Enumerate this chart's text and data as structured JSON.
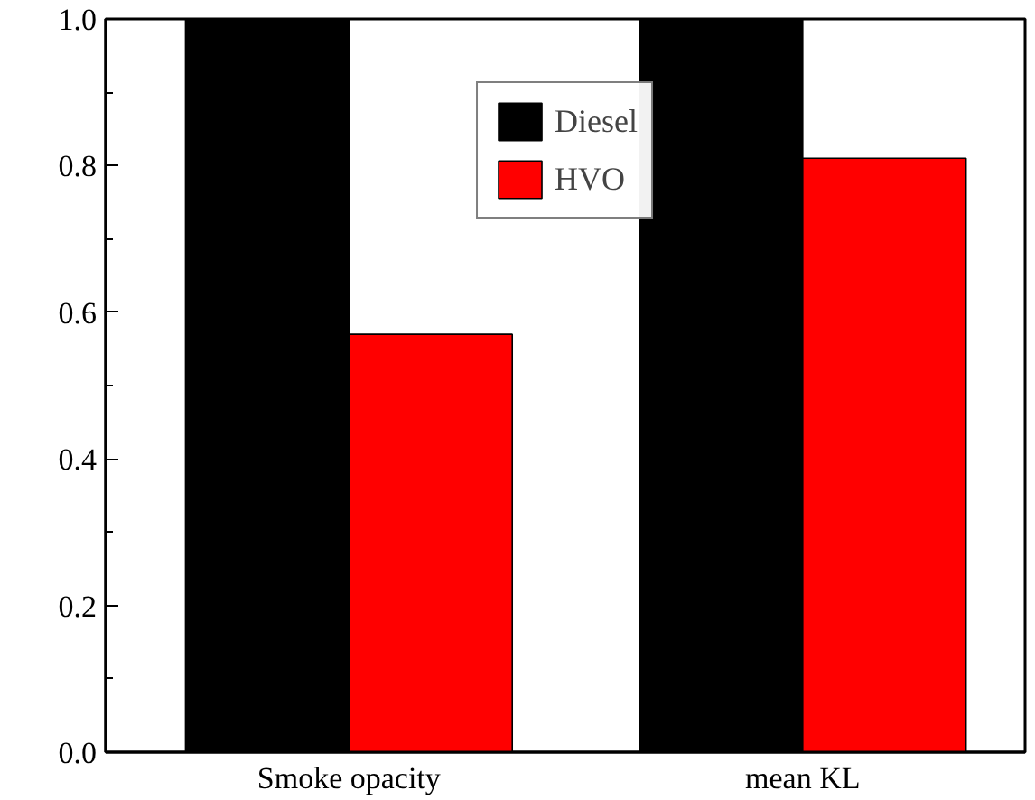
{
  "chart_data": {
    "type": "bar",
    "categories": [
      "Smoke opacity",
      "mean KL"
    ],
    "series": [
      {
        "name": "Diesel",
        "color": "#000000",
        "values": [
          1.0,
          1.0
        ]
      },
      {
        "name": "HVO",
        "color": "#ff0000",
        "values": [
          0.57,
          0.81
        ]
      }
    ],
    "ylim": [
      0,
      1
    ],
    "yticks": [
      {
        "value": 0,
        "label": "0.0"
      },
      {
        "value": 0.1,
        "label": null
      },
      0.2,
      {
        "value": 0.3,
        "label": null
      },
      0.4,
      {
        "value": 0.5,
        "label": null
      },
      0.6,
      {
        "value": 0.7,
        "label": null
      },
      0.8,
      {
        "value": 0.9,
        "label": null
      },
      {
        "value": 1,
        "label": "1.0"
      }
    ],
    "legend": "top",
    "grid": false
  }
}
